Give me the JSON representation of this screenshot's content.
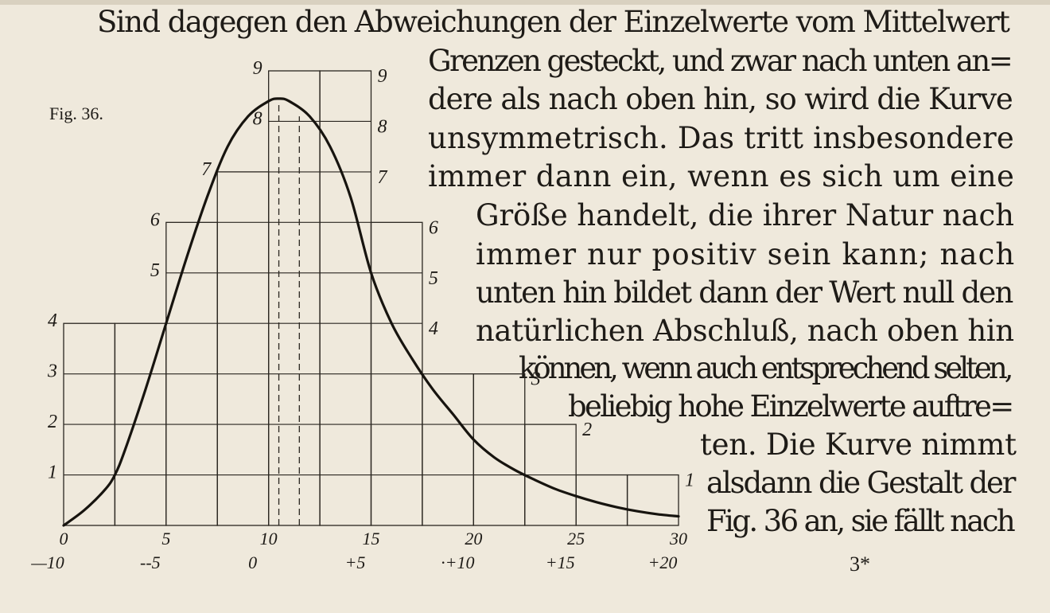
{
  "text_lines": [
    "Sind dagegen den Abweichungen der Einzelwerte vom Mittelwert",
    "Grenzen gesteckt, und zwar nach unten an=",
    "dere als nach oben hin, so wird die Kurve",
    "unsymmetrisch. Das tritt insbesondere",
    "immer dann ein, wenn es sich um eine",
    "Größe handelt, die ihrer Natur nach",
    "immer nur positiv sein kann; nach",
    "unten hin bildet dann der Wert null den",
    "natürlichen Abschluß, nach oben hin",
    "können, wenn auch entsprechend selten,",
    "beliebig hohe Einzelwerte auftre=",
    "ten. Die Kurve nimmt",
    "alsdann die Gestalt der",
    "Fig. 36 an, sie fällt nach"
  ],
  "figure_label": "Fig. 36.",
  "page_number": "3*",
  "chart_data": {
    "type": "area",
    "x_ticks": [
      "0",
      "5",
      "10",
      "15",
      "20",
      "25",
      "30"
    ],
    "x_ticks_deviation": [
      "—10",
      "--5",
      "0",
      "+5",
      "·+10",
      "+15",
      "+20"
    ],
    "xlim": [
      0,
      30
    ],
    "ylim": [
      0,
      9
    ],
    "left_y_labels": [
      "1",
      "2",
      "3",
      "4",
      "5",
      "6",
      "7",
      "8",
      "9"
    ],
    "right_y_labels": [
      "1",
      "2",
      "3",
      "4",
      "5",
      "6",
      "7",
      "8",
      "9"
    ],
    "histogram": [
      {
        "x0": 0,
        "x1": 2.5,
        "height": 4
      },
      {
        "x0": 2.5,
        "x1": 5,
        "height": 4
      },
      {
        "x0": 5,
        "x1": 7.5,
        "height": 6
      },
      {
        "x0": 7.5,
        "x1": 10,
        "height": 7
      },
      {
        "x0": 10,
        "x1": 12.5,
        "height": 9
      },
      {
        "x0": 12.5,
        "x1": 15,
        "height": 9
      },
      {
        "x0": 15,
        "x1": 17.5,
        "height": 6
      },
      {
        "x0": 17.5,
        "x1": 20,
        "height": 3
      },
      {
        "x0": 20,
        "x1": 22.5,
        "height": 3
      },
      {
        "x0": 22.5,
        "x1": 25,
        "height": 2
      },
      {
        "x0": 25,
        "x1": 27.5,
        "height": 1
      },
      {
        "x0": 27.5,
        "x1": 30,
        "height": 1
      }
    ],
    "curve": {
      "x": [
        0,
        1,
        2,
        2.5,
        3,
        4,
        5,
        6,
        7,
        8,
        9,
        10,
        10.5,
        11,
        12,
        13,
        14,
        15,
        16,
        17,
        18,
        19,
        20,
        21,
        22,
        23,
        24,
        25,
        26,
        27,
        28,
        29,
        30
      ],
      "y": [
        0,
        0.3,
        0.7,
        1.0,
        1.5,
        2.7,
        4.0,
        5.3,
        6.5,
        7.5,
        8.1,
        8.4,
        8.45,
        8.4,
        8.1,
        7.5,
        6.5,
        5.0,
        4.0,
        3.3,
        2.7,
        2.2,
        1.7,
        1.35,
        1.1,
        0.9,
        0.72,
        0.58,
        0.46,
        0.36,
        0.28,
        0.22,
        0.18
      ]
    },
    "mean_line_x": 10.5,
    "median_line_x": 11.5,
    "grid": true
  }
}
